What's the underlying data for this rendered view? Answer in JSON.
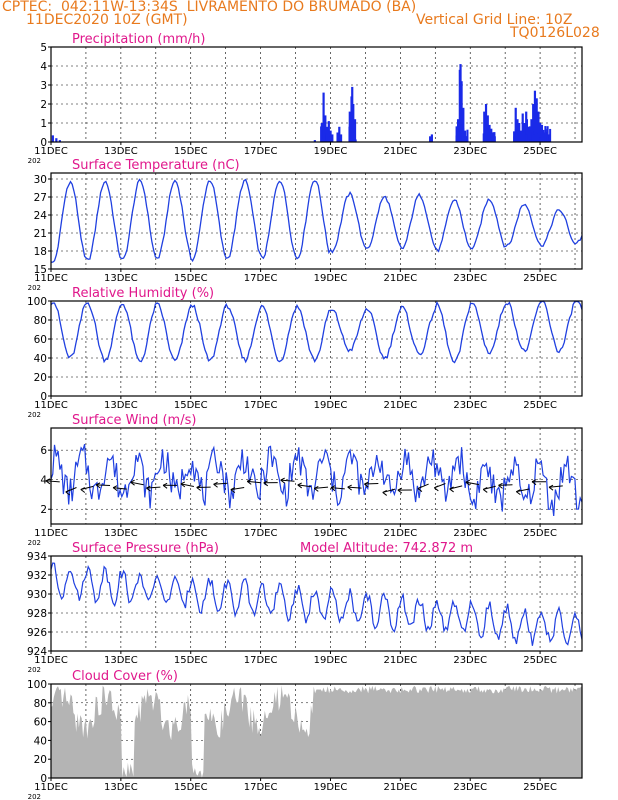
{
  "header": {
    "line1": "CPTEC:  042:11W-13:34S  LIVRAMENTO DO BRUMADO (BA)",
    "line2_left": "11DEC2020 10Z (GMT)",
    "line2_right": "Vertical Grid Line: 10Z",
    "line3_right": "TQ0126L028"
  },
  "x_tick_labels": [
    "11DEC",
    "13DEC",
    "15DEC",
    "17DEC",
    "19DEC",
    "21DEC",
    "23DEC",
    "25DEC"
  ],
  "year_fragment": "202",
  "colors": {
    "header": "#e87a1e",
    "title": "#e0188c",
    "line": "#2040e0",
    "bar": "#1a2ae8",
    "cloud": "#b4b4b4",
    "frame": "#000000"
  },
  "chart_data": [
    {
      "type": "bar",
      "title": "Precipitation (mm/h)",
      "ylim": [
        0,
        5
      ],
      "yticks": [
        0,
        1,
        2,
        3,
        4,
        5
      ],
      "x_unit": "days since 11DEC2020 10Z",
      "xlim": [
        0,
        7.6
      ],
      "values_hourly_sparse": [
        [
          0.05,
          0.35
        ],
        [
          0.15,
          0.2
        ],
        [
          0.25,
          0.1
        ],
        [
          7.55,
          0.1
        ],
        [
          7.75,
          1.0
        ],
        [
          7.8,
          2.6
        ],
        [
          7.85,
          1.4
        ],
        [
          7.9,
          0.8
        ],
        [
          7.95,
          1.1
        ],
        [
          8.0,
          0.6
        ],
        [
          8.05,
          0.4
        ],
        [
          8.2,
          0.5
        ],
        [
          8.25,
          0.8
        ],
        [
          8.3,
          0.4
        ],
        [
          8.55,
          1.6
        ],
        [
          8.6,
          2.4
        ],
        [
          8.62,
          2.9
        ],
        [
          8.65,
          2.0
        ],
        [
          8.7,
          1.2
        ],
        [
          10.85,
          0.3
        ],
        [
          10.9,
          0.4
        ],
        [
          11.65,
          1.2
        ],
        [
          11.7,
          3.8
        ],
        [
          11.72,
          4.1
        ],
        [
          11.75,
          3.2
        ],
        [
          11.8,
          1.8
        ],
        [
          11.85,
          0.6
        ],
        [
          11.9,
          0.2
        ],
        [
          12.4,
          1.6
        ],
        [
          12.45,
          2.0
        ],
        [
          12.5,
          1.4
        ],
        [
          12.55,
          0.9
        ],
        [
          12.6,
          0.7
        ],
        [
          12.65,
          0.5
        ],
        [
          12.7,
          0.3
        ],
        [
          13.3,
          1.8
        ],
        [
          13.35,
          1.2
        ],
        [
          13.4,
          1.0
        ],
        [
          13.45,
          0.6
        ],
        [
          13.5,
          1.5
        ],
        [
          13.55,
          1.0
        ],
        [
          13.6,
          1.6
        ],
        [
          13.62,
          1.2
        ],
        [
          13.65,
          0.8
        ],
        [
          13.7,
          0.7
        ],
        [
          13.75,
          1.2
        ],
        [
          13.8,
          2.0
        ],
        [
          13.85,
          2.7
        ],
        [
          13.9,
          2.3
        ],
        [
          13.95,
          1.6
        ],
        [
          14.0,
          1.0
        ],
        [
          14.05,
          0.9
        ],
        [
          14.1,
          0.5
        ],
        [
          14.15,
          0.3
        ],
        [
          14.2,
          0.5
        ],
        [
          14.25,
          0.4
        ]
      ]
    },
    {
      "type": "line",
      "title": "Surface Temperature (nC)",
      "ylim": [
        15,
        31
      ],
      "yticks": [
        15,
        18,
        21,
        24,
        27,
        30
      ],
      "min_max_by_day": [
        [
          16.0,
          29.5
        ],
        [
          16.4,
          29.6
        ],
        [
          16.5,
          29.7
        ],
        [
          16.8,
          29.7
        ],
        [
          16.6,
          29.8
        ],
        [
          16.8,
          29.7
        ],
        [
          16.8,
          29.8
        ],
        [
          16.8,
          29.9
        ],
        [
          18.0,
          27.5
        ],
        [
          18.5,
          27.0
        ],
        [
          18.4,
          27.3
        ],
        [
          18.0,
          26.5
        ],
        [
          18.5,
          26.6
        ],
        [
          18.8,
          25.8
        ],
        [
          19.0,
          24.8
        ],
        [
          19.5,
          24.5
        ],
        [
          20.0,
          25.2
        ],
        [
          20.5,
          23.6
        ]
      ]
    },
    {
      "type": "line",
      "title": "Relative Humidity (%)",
      "ylim": [
        0,
        100
      ],
      "yticks": [
        0,
        20,
        40,
        60,
        80,
        100
      ],
      "min_max_by_day": [
        [
          40,
          100
        ],
        [
          38,
          98
        ],
        [
          36,
          97
        ],
        [
          37,
          96
        ],
        [
          37,
          95
        ],
        [
          38,
          95
        ],
        [
          37,
          94
        ],
        [
          38,
          94
        ],
        [
          48,
          90
        ],
        [
          40,
          92
        ],
        [
          44,
          93
        ],
        [
          35,
          96
        ],
        [
          46,
          98
        ],
        [
          47,
          99
        ],
        [
          47,
          100
        ],
        [
          50,
          100
        ],
        [
          55,
          100
        ],
        [
          60,
          100
        ]
      ]
    },
    {
      "type": "line",
      "title": "Surface Wind (m/s)",
      "ylim": [
        1,
        7.5
      ],
      "yticks": [
        2,
        4,
        6
      ]
    },
    {
      "type": "line",
      "title": "Surface Pressure (hPa)",
      "annotation": "Model Altitude: 742.872 m",
      "ylim": [
        924,
        934
      ],
      "yticks": [
        924,
        926,
        928,
        930,
        932,
        934
      ]
    },
    {
      "type": "area",
      "title": "Cloud Cover (%)",
      "ylim": [
        0,
        100
      ],
      "yticks": [
        0,
        20,
        40,
        60,
        80,
        100
      ]
    }
  ]
}
